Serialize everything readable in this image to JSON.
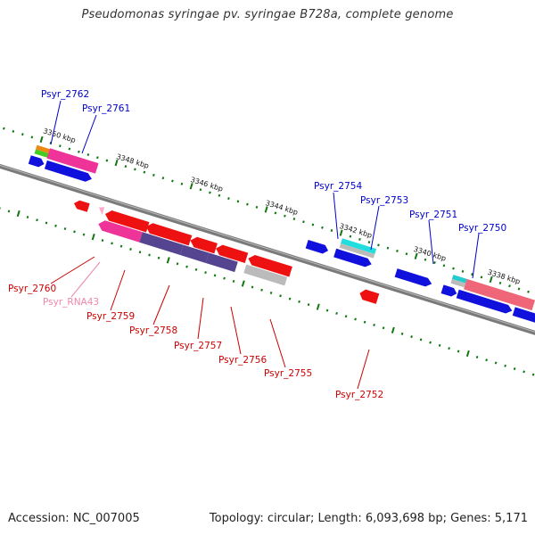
{
  "title": "Pseudomonas syringae pv. syringae B728a, complete genome",
  "footer": {
    "accession": "Accession: NC_007005",
    "topology": "Topology: circular; Length: 6,093,698 bp; Genes: 5,171"
  },
  "colors": {
    "forward_label": "#0000cc",
    "reverse_label": "#cc0000",
    "rna_label": "#ee88aa",
    "backbone": "#888888",
    "tick": "#117711"
  },
  "kbp_labels": [
    "3350 kbp",
    "3348 kbp",
    "3346 kbp",
    "3344 kbp",
    "3342 kbp",
    "3340 kbp",
    "3338 kbp"
  ],
  "genes": [
    {
      "label": "Psyr_2762",
      "strand": "forward"
    },
    {
      "label": "Psyr_2761",
      "strand": "forward"
    },
    {
      "label": "Psyr_2754",
      "strand": "forward"
    },
    {
      "label": "Psyr_2753",
      "strand": "forward"
    },
    {
      "label": "Psyr_2751",
      "strand": "forward"
    },
    {
      "label": "Psyr_2750",
      "strand": "forward"
    },
    {
      "label": "Psyr_2760",
      "strand": "reverse"
    },
    {
      "label": "Psyr_RNA43",
      "strand": "reverse"
    },
    {
      "label": "Psyr_2759",
      "strand": "reverse"
    },
    {
      "label": "Psyr_2758",
      "strand": "reverse"
    },
    {
      "label": "Psyr_2757",
      "strand": "reverse"
    },
    {
      "label": "Psyr_2756",
      "strand": "reverse"
    },
    {
      "label": "Psyr_2755",
      "strand": "reverse"
    },
    {
      "label": "Psyr_2752",
      "strand": "reverse"
    }
  ]
}
